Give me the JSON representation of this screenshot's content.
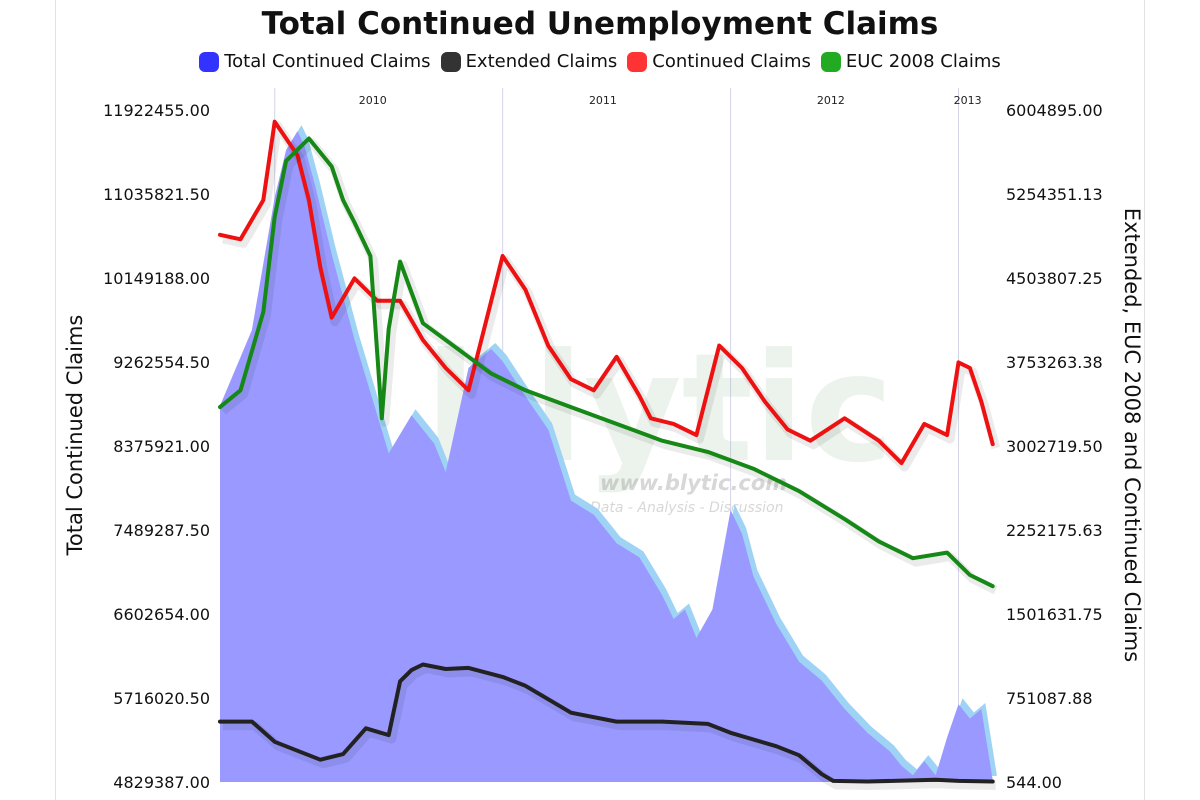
{
  "chart_data": {
    "type": "line",
    "title": "Total Continued Unemployment Claims",
    "ylabel_left": "Total Continued Claims",
    "ylabel_right": "Extended, EUC 2008 and Continued Claims",
    "year_labels": [
      "2010",
      "2011",
      "2012",
      "2013"
    ],
    "year_positions": [
      2010.43,
      2011.44,
      2012.44,
      2013.04
    ],
    "year_gridlines": [
      2010.0,
      2011.0,
      2012.0,
      2013.0
    ],
    "xlim": [
      2009.76,
      2013.16
    ],
    "left_axis": {
      "ticks": [
        "4829387.00",
        "5716020.50",
        "6602654.00",
        "7489287.50",
        "8375921.00",
        "9262554.50",
        "10149188.00",
        "11035821.50",
        "11922455.00"
      ],
      "ylim": [
        4829387,
        11922455
      ]
    },
    "right_axis": {
      "ticks": [
        "544.00",
        "751087.88",
        "1501631.75",
        "2252175.63",
        "3002719.50",
        "3753263.38",
        "4503807.25",
        "5254351.13",
        "6004895.00"
      ],
      "ylim": [
        544,
        6004895
      ]
    },
    "watermark": {
      "brand": "blytic",
      "url": "www.blytic.com",
      "tagline": "Data - Analysis - Discussion"
    },
    "series": [
      {
        "name": "Total Continued Claims",
        "axis": "left",
        "style": "area",
        "color": "#3333ff",
        "x": [
          2009.76,
          2009.9,
          2010.0,
          2010.05,
          2010.1,
          2010.13,
          2010.18,
          2010.25,
          2010.35,
          2010.5,
          2010.6,
          2010.7,
          2010.75,
          2010.85,
          2010.95,
          2011.0,
          2011.1,
          2011.2,
          2011.3,
          2011.4,
          2011.5,
          2011.6,
          2011.7,
          2011.75,
          2011.8,
          2011.85,
          2011.92,
          2012.0,
          2012.05,
          2012.1,
          2012.15,
          2012.2,
          2012.3,
          2012.4,
          2012.5,
          2012.6,
          2012.7,
          2012.75,
          2012.8,
          2012.85,
          2012.9,
          2012.95,
          2013.0,
          2013.05,
          2013.1,
          2013.15
        ],
        "y": [
          8800000,
          9600000,
          11000000,
          11500000,
          11700000,
          11550000,
          11100000,
          10400000,
          9500000,
          8300000,
          8700000,
          8400000,
          8100000,
          9200000,
          9400000,
          9270000,
          8900000,
          8550000,
          7800000,
          7650000,
          7350000,
          7200000,
          6800000,
          6550000,
          6650000,
          6350000,
          6650000,
          7700000,
          7450000,
          7000000,
          6750000,
          6500000,
          6100000,
          5900000,
          5600000,
          5350000,
          5150000,
          5000000,
          4900000,
          5050000,
          4900000,
          5300000,
          5650000,
          5500000,
          5600000,
          4850000
        ]
      },
      {
        "name": "Extended Claims",
        "axis": "right",
        "style": "line",
        "color": "#222222",
        "x": [
          2009.76,
          2009.9,
          2010.0,
          2010.2,
          2010.3,
          2010.4,
          2010.5,
          2010.55,
          2010.6,
          2010.65,
          2010.75,
          2010.85,
          2011.0,
          2011.1,
          2011.3,
          2011.5,
          2011.7,
          2011.9,
          2012.0,
          2012.2,
          2012.3,
          2012.4,
          2012.45,
          2012.6,
          2012.9,
          2013.0,
          2013.15
        ],
        "y": [
          540000,
          540000,
          360000,
          200000,
          250000,
          480000,
          420000,
          900000,
          1000000,
          1050000,
          1010000,
          1020000,
          940000,
          860000,
          620000,
          540000,
          540000,
          520000,
          440000,
          320000,
          240000,
          70000,
          10000,
          5000,
          20000,
          10000,
          5000
        ]
      },
      {
        "name": "Continued Claims",
        "axis": "right",
        "style": "line",
        "color": "#ee1111",
        "x": [
          2009.76,
          2009.85,
          2009.95,
          2010.0,
          2010.1,
          2010.15,
          2010.2,
          2010.25,
          2010.35,
          2010.45,
          2010.55,
          2010.65,
          2010.75,
          2010.85,
          2010.9,
          2011.0,
          2011.1,
          2011.2,
          2011.3,
          2011.4,
          2011.5,
          2011.6,
          2011.65,
          2011.75,
          2011.85,
          2011.95,
          2012.05,
          2012.15,
          2012.25,
          2012.35,
          2012.5,
          2012.65,
          2012.75,
          2012.85,
          2012.95,
          2013.0,
          2013.05,
          2013.1,
          2013.15
        ],
        "y": [
          4890000,
          4850000,
          5200000,
          5900000,
          5600000,
          5200000,
          4600000,
          4150000,
          4500000,
          4300000,
          4300000,
          3950000,
          3700000,
          3500000,
          3900000,
          4700000,
          4400000,
          3900000,
          3600000,
          3500000,
          3800000,
          3450000,
          3250000,
          3200000,
          3100000,
          3900000,
          3700000,
          3400000,
          3150000,
          3050000,
          3250000,
          3050000,
          2850000,
          3200000,
          3100000,
          3750000,
          3700000,
          3400000,
          3020000
        ]
      },
      {
        "name": "EUC 2008 Claims",
        "axis": "right",
        "style": "line",
        "color": "#158815",
        "x": [
          2009.76,
          2009.85,
          2009.95,
          2010.0,
          2010.05,
          2010.1,
          2010.15,
          2010.25,
          2010.3,
          2010.35,
          2010.42,
          2010.47,
          2010.5,
          2010.55,
          2010.65,
          2010.75,
          2010.85,
          2010.95,
          2011.1,
          2011.3,
          2011.5,
          2011.7,
          2011.9,
          2012.1,
          2012.3,
          2012.5,
          2012.65,
          2012.8,
          2012.95,
          2013.0,
          2013.05,
          2013.1,
          2013.15
        ],
        "y": [
          3350000,
          3500000,
          4200000,
          5050000,
          5550000,
          5650000,
          5750000,
          5500000,
          5200000,
          5000000,
          4700000,
          3250000,
          4050000,
          4650000,
          4100000,
          3950000,
          3800000,
          3650000,
          3500000,
          3350000,
          3200000,
          3050000,
          2950000,
          2800000,
          2600000,
          2350000,
          2150000,
          2000000,
          2050000,
          1950000,
          1850000,
          1800000,
          1750000
        ]
      }
    ]
  }
}
